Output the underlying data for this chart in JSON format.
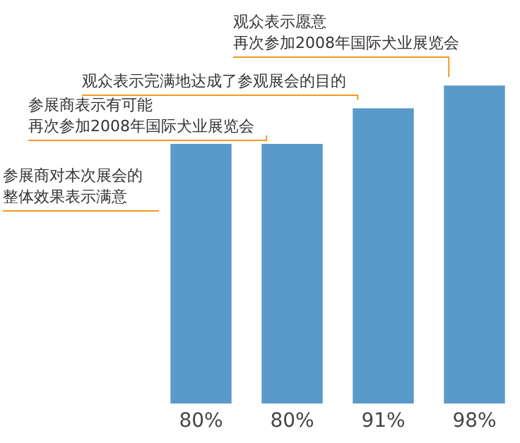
{
  "chart_data": {
    "type": "bar",
    "categories": [
      null,
      null,
      null,
      null
    ],
    "values": [
      80,
      80,
      91,
      98
    ],
    "color": "#5a9acb",
    "value_labels": [
      "80%",
      "80%",
      "91%",
      "98%"
    ],
    "annotations": [
      "参展商对本次展会的整体效果表示满意",
      "参展商表示有可能再次参加2008年国际犬业展览会",
      "观众表示完满地达成了参观展会的目的",
      "观众表示愿意再次参加2008年国际犬业展览会"
    ]
  }
}
